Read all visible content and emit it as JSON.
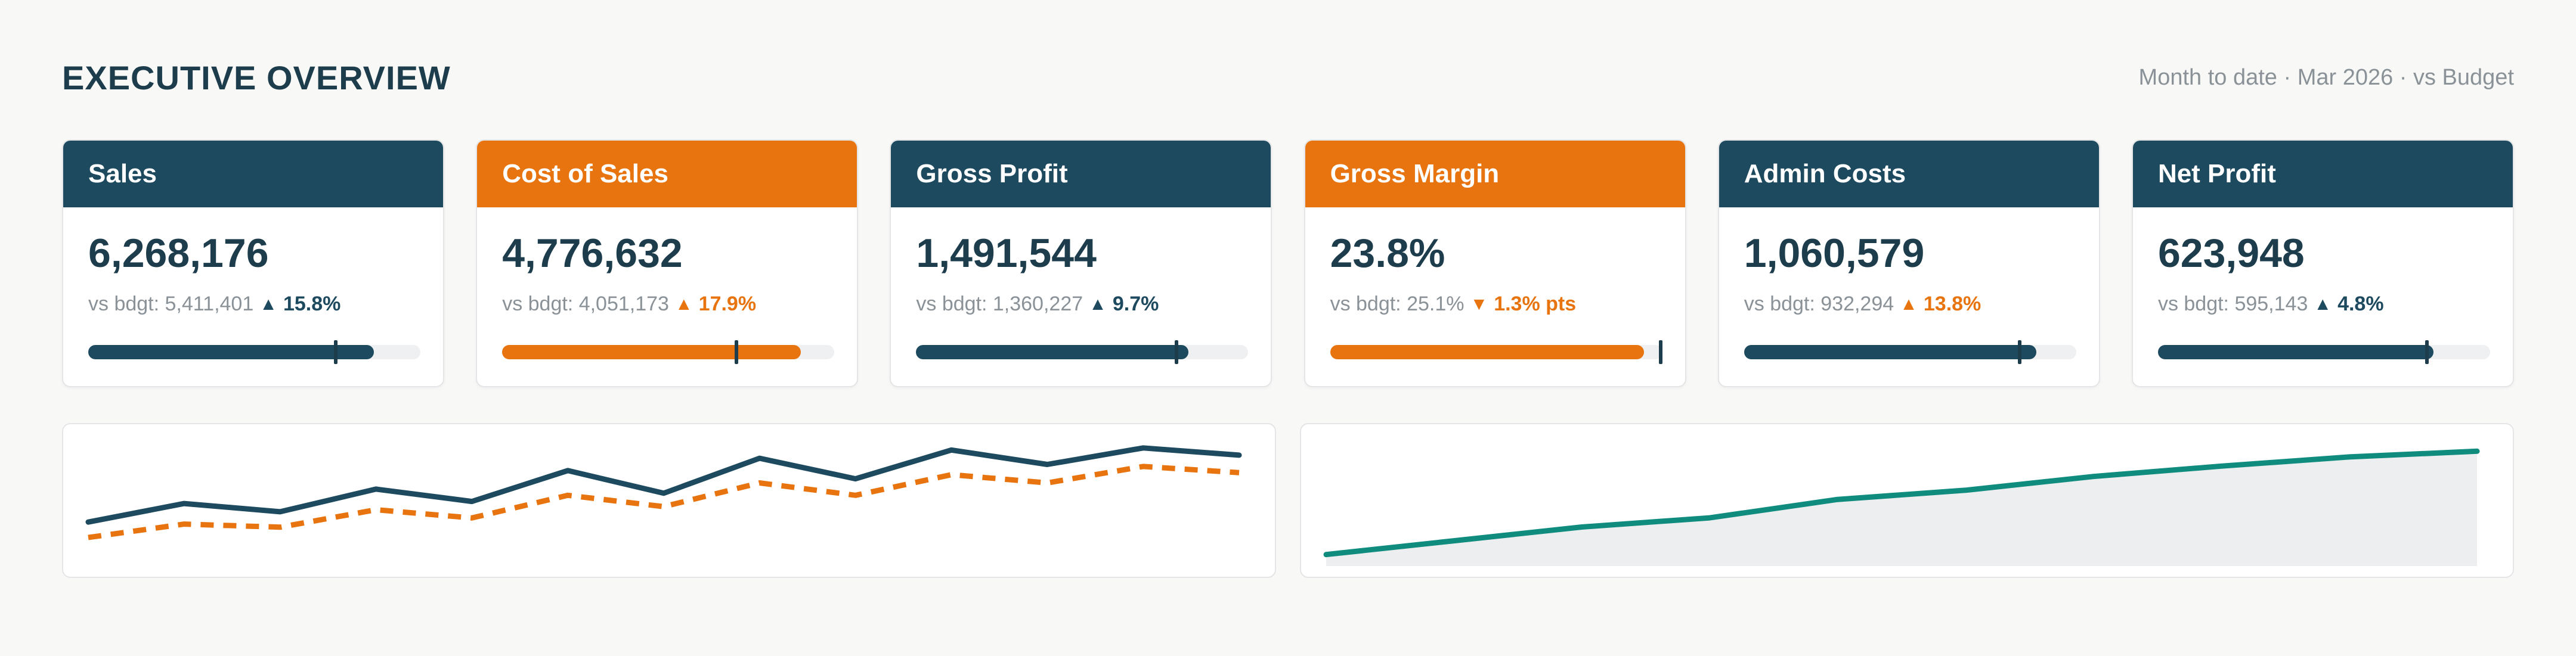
{
  "header": {
    "title": "EXECUTIVE OVERVIEW",
    "subtitle": "Month to date · Mar 2026 · vs Budget"
  },
  "colors": {
    "dark": "#1d4a5e",
    "orange": "#e8740f",
    "teal": "#0f8c7e",
    "area": "#eceeef"
  },
  "cards": [
    {
      "title": "Sales",
      "theme": "dark",
      "value": "6,268,176",
      "compare": "vs bdgt: 5,411,401",
      "delta": "15.8%",
      "direction": "up",
      "delta_color": "dark",
      "fill": 0.86,
      "marker": 0.745
    },
    {
      "title": "Cost of Sales",
      "theme": "orange",
      "value": "4,776,632",
      "compare": "vs bdgt: 4,051,173",
      "delta": "17.9%",
      "direction": "up",
      "delta_color": "orange",
      "fill": 0.9,
      "marker": 0.705
    },
    {
      "title": "Gross Profit",
      "theme": "dark",
      "value": "1,491,544",
      "compare": "vs bdgt: 1,360,227",
      "delta": "9.7%",
      "direction": "up",
      "delta_color": "dark",
      "fill": 0.82,
      "marker": 0.785
    },
    {
      "title": "Gross Margin",
      "theme": "orange",
      "value": "23.8%",
      "compare": "vs bdgt: 25.1%",
      "delta": "1.3% pts",
      "direction": "down",
      "delta_color": "orange",
      "fill": 0.945,
      "marker": 0.995
    },
    {
      "title": "Admin Costs",
      "theme": "dark",
      "value": "1,060,579",
      "compare": "vs bdgt: 932,294",
      "delta": "13.8%",
      "direction": "up",
      "delta_color": "orange",
      "fill": 0.88,
      "marker": 0.83
    },
    {
      "title": "Net Profit",
      "theme": "dark",
      "value": "623,948",
      "compare": "vs bdgt: 595,143",
      "delta": "4.8%",
      "direction": "up",
      "delta_color": "dark",
      "fill": 0.83,
      "marker": 0.81
    }
  ],
  "chart_data": [
    {
      "type": "line",
      "x": [
        1,
        2,
        3,
        4,
        5,
        6,
        7,
        8,
        9,
        10,
        11,
        12,
        13
      ],
      "series": [
        {
          "values": [
            30,
            48,
            40,
            62,
            50,
            80,
            58,
            92,
            72,
            100,
            86,
            102,
            95
          ],
          "color": "#1d4a5e",
          "style": "solid"
        },
        {
          "values": [
            15,
            28,
            25,
            42,
            34,
            56,
            45,
            68,
            56,
            76,
            68,
            84,
            78
          ],
          "color": "#e8740f",
          "style": "dashed"
        }
      ],
      "ylim": [
        0,
        110
      ],
      "grid": false
    },
    {
      "type": "area",
      "x": [
        1,
        2,
        3,
        4,
        5,
        6,
        7,
        8,
        9,
        10
      ],
      "series": [
        {
          "values": [
            10,
            22,
            34,
            42,
            58,
            66,
            78,
            87,
            95,
            100
          ],
          "color": "#0f8c7e"
        }
      ],
      "ylim": [
        0,
        110
      ],
      "grid": false
    }
  ]
}
